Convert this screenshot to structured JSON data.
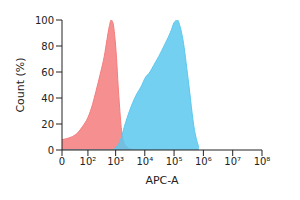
{
  "chart_data": {
    "type": "area",
    "x_label": "APC-A",
    "y_label": "Count (%)",
    "x": [
      0,
      30,
      60,
      100,
      150,
      200,
      300,
      400,
      500,
      600,
      700,
      800,
      1000,
      1300,
      1600,
      2000,
      3000,
      5000,
      8000,
      10000,
      15000,
      20000,
      30000,
      50000,
      80000,
      100000,
      130000,
      160000,
      200000,
      300000,
      500000,
      700000
    ],
    "series": [
      {
        "color": "#f47c7c",
        "values": [
          8,
          12,
          18,
          25,
          35,
          45,
          60,
          72,
          85,
          95,
          100,
          98,
          80,
          40,
          15,
          5,
          1,
          0,
          0,
          0,
          0,
          0,
          0,
          0,
          0,
          0,
          0,
          0,
          0,
          0,
          0,
          0
        ]
      },
      {
        "color": "#5bc8ef",
        "values": [
          0,
          0,
          0,
          0,
          0,
          0,
          0,
          0,
          0,
          0,
          0,
          0,
          2,
          5,
          10,
          18,
          30,
          42,
          50,
          55,
          60,
          65,
          72,
          82,
          92,
          98,
          100,
          95,
          85,
          55,
          15,
          2
        ]
      }
    ],
    "xlim": [
      0,
      100000000
    ],
    "xticks": [
      0,
      {
        "value": 100,
        "label": "10²"
      },
      {
        "value": 1000,
        "label": "10³"
      },
      {
        "value": 10000,
        "label": "10⁴"
      },
      {
        "value": 100000,
        "label": "10⁵"
      },
      {
        "value": 1000000,
        "label": "10⁶"
      },
      {
        "value": 10000000,
        "label": "10⁷"
      },
      {
        "value": 100000000,
        "label": "10⁸"
      }
    ],
    "ylim": [
      0,
      100
    ],
    "yticks": [
      0,
      20,
      40,
      60,
      80,
      100
    ],
    "log": "x"
  }
}
